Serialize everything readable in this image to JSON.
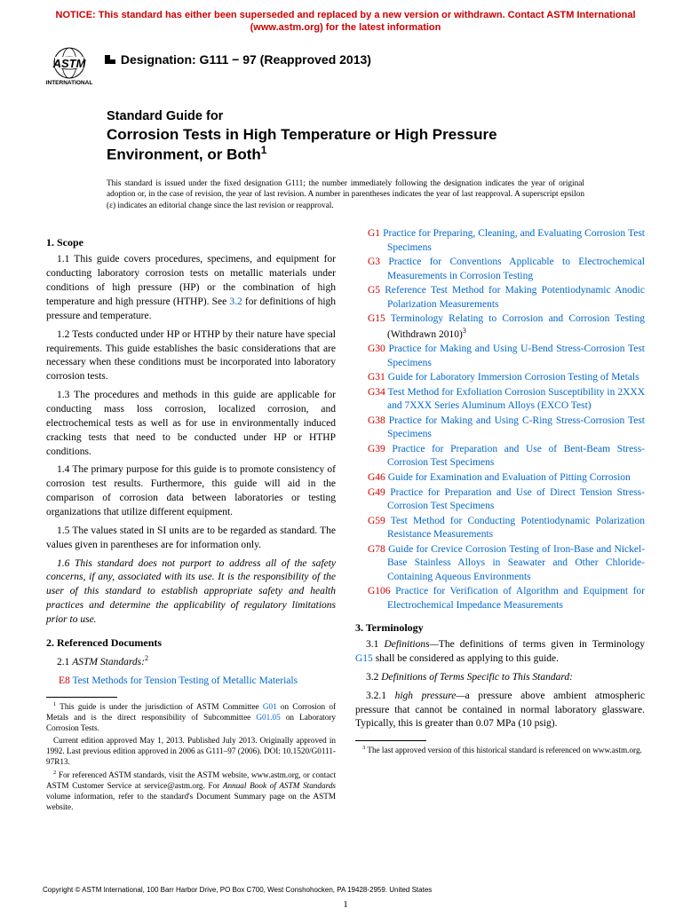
{
  "notice": {
    "text": "NOTICE: This standard has either been superseded and replaced by a new version or withdrawn. Contact ASTM International (www.astm.org) for the latest information",
    "color": "#cc0000"
  },
  "designation": "Designation: G111 − 97 (Reapproved 2013)",
  "title": {
    "line1": "Standard Guide for",
    "line2": "Corrosion Tests in High Temperature or High Pressure Environment, or Both",
    "sup": "1"
  },
  "issued_note": "This standard is issued under the fixed designation G111; the number immediately following the designation indicates the year of original adoption or, in the case of revision, the year of last revision. A number in parentheses indicates the year of last reapproval. A superscript epsilon (ε) indicates an editorial change since the last revision or reapproval.",
  "scope": {
    "head": "1. Scope",
    "p11a": "1.1 This guide covers procedures, specimens, and equipment for conducting laboratory corrosion tests on metallic materials under conditions of high pressure (HP) or the combination of high temperature and high pressure (HTHP). See ",
    "p11_link": "3.2",
    "p11b": " for definitions of high pressure and temperature.",
    "p12": "1.2 Tests conducted under HP or HTHP by their nature have special requirements. This guide establishes the basic considerations that are necessary when these conditions must be incorporated into laboratory corrosion tests.",
    "p13": "1.3 The procedures and methods in this guide are applicable for conducting mass loss corrosion, localized corrosion, and electrochemical tests as well as for use in environmentally induced cracking tests that need to be conducted under HP or HTHP conditions.",
    "p14": "1.4 The primary purpose for this guide is to promote consistency of corrosion test results. Furthermore, this guide will aid in the comparison of corrosion data between laboratories or testing organizations that utilize different equipment.",
    "p15": "1.5 The values stated in SI units are to be regarded as standard. The values given in parentheses are for information only.",
    "p16": "1.6 This standard does not purport to address all of the safety concerns, if any, associated with its use. It is the responsibility of the user of this standard to establish appropriate safety and health practices and determine the applicability of regulatory limitations prior to use."
  },
  "refdocs": {
    "head": "2. Referenced Documents",
    "p21": "2.1 ",
    "p21_italic": "ASTM Standards:",
    "p21_sup": "2",
    "e8_code": "E8",
    "e8_text": " Test Methods for Tension Testing of Metallic Materials"
  },
  "refs": [
    {
      "code": "G1",
      "text": " Practice for Preparing, Cleaning, and Evaluating Corrosion Test Specimens"
    },
    {
      "code": "G3",
      "text": " Practice for Conventions Applicable to Electrochemical Measurements in Corrosion Testing"
    },
    {
      "code": "G5",
      "text": " Reference Test Method for Making Potentiodynamic Anodic Polarization Measurements"
    },
    {
      "code": "G15",
      "text": " Terminology Relating to Corrosion and Corrosion Testing",
      "suffix": " (Withdrawn 2010)",
      "sup": "3"
    },
    {
      "code": "G30",
      "text": " Practice for Making and Using U-Bend Stress-Corrosion Test Specimens"
    },
    {
      "code": "G31",
      "text": " Guide for Laboratory Immersion Corrosion Testing of Metals"
    },
    {
      "code": "G34",
      "text": " Test Method for Exfoliation Corrosion Susceptibility in 2XXX and 7XXX Series Aluminum Alloys (EXCO Test)"
    },
    {
      "code": "G38",
      "text": " Practice for Making and Using C-Ring Stress-Corrosion Test Specimens"
    },
    {
      "code": "G39",
      "text": " Practice for Preparation and Use of Bent-Beam Stress-Corrosion Test Specimens"
    },
    {
      "code": "G46",
      "text": " Guide for Examination and Evaluation of Pitting Corrosion"
    },
    {
      "code": "G49",
      "text": " Practice for Preparation and Use of Direct Tension Stress-Corrosion Test Specimens"
    },
    {
      "code": "G59",
      "text": " Test Method for Conducting Potentiodynamic Polarization Resistance Measurements"
    },
    {
      "code": "G78",
      "text": " Guide for Crevice Corrosion Testing of Iron-Base and Nickel-Base Stainless Alloys in Seawater and Other Chloride-Containing Aqueous Environments"
    },
    {
      "code": "G106",
      "text": " Practice for Verification of Algorithm and Equipment for Electrochemical Impedance Measurements"
    }
  ],
  "terminology": {
    "head": "3. Terminology",
    "p31a": "3.1 ",
    "p31_italic": "Definitions—",
    "p31b": "The definitions of terms given in Terminology ",
    "p31_link": "G15",
    "p31c": " shall be considered as applying to this guide.",
    "p32a": "3.2 ",
    "p32_italic": "Definitions of Terms Specific to This Standard:",
    "p321a": "3.2.1 ",
    "p321_italic": "high pressure—",
    "p321b": "a pressure above ambient atmospheric pressure that cannot be contained in normal laboratory glassware. Typically, this is greater than 0.07 MPa (10 psig)."
  },
  "footnotes": {
    "f1a": "1",
    "f1b": " This guide is under the jurisdiction of ASTM Committee ",
    "f1_link1": "G01",
    "f1c": " on Corrosion of Metals and is the direct responsibility of Subcommittee ",
    "f1_link2": "G01.05",
    "f1d": " on Laboratory Corrosion Tests.",
    "f1e": "Current edition approved May 1, 2013. Published July 2013. Originally approved in 1992. Last previous edition approved in 2006 as G111–97 (2006). DOI: 10.1520/G0111-97R13.",
    "f2a": "2",
    "f2b": " For referenced ASTM standards, visit the ASTM website, www.astm.org, or contact ASTM Customer Service at service@astm.org. For ",
    "f2_italic": "Annual Book of ASTM Standards",
    "f2c": " volume information, refer to the standard's Document Summary page on the ASTM website.",
    "f3a": "3",
    "f3b": " The last approved version of this historical standard is referenced on www.astm.org."
  },
  "copyright": "Copyright © ASTM International, 100 Barr Harbor Drive, PO Box C700, West Conshohocken, PA 19428-2959. United States",
  "page_number": "1",
  "colors": {
    "notice": "#cc0000",
    "link": "#0066cc",
    "code": "#cc0000",
    "text": "#000000",
    "background": "#ffffff"
  },
  "typography": {
    "body_font": "Times New Roman",
    "heading_font": "Arial",
    "body_size_pt": 11.5,
    "footnote_size_pt": 9.2,
    "notice_size_pt": 11,
    "title_size_pt": 17
  }
}
